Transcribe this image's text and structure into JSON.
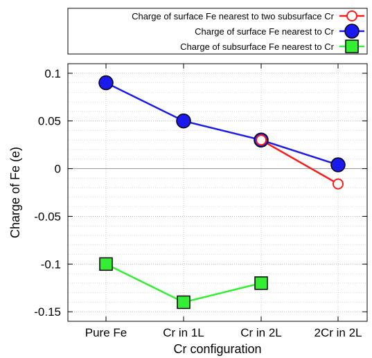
{
  "chart_data": {
    "type": "line",
    "xlabel": "Cr configuration",
    "ylabel": "Charge of Fe (e)",
    "categories": [
      "Pure Fe",
      "Cr in 1L",
      "Cr in 2L",
      "2Cr in 2L"
    ],
    "ylim": [
      -0.16,
      0.11
    ],
    "yticks": [
      0.1,
      0.05,
      0,
      -0.05,
      -0.1,
      -0.15
    ],
    "ytick_labels": [
      "0.1",
      "0.05",
      "0",
      "-0.05",
      "-0.1",
      "-0.15"
    ],
    "grid": true,
    "legend_position": "top-right, above plot",
    "zero_line": true,
    "series": [
      {
        "name": "Charge of surface Fe nearest to two subsurface Cr",
        "color": "#ff1a1a",
        "marker": "open-circle",
        "points": [
          [
            2,
            0.03
          ],
          [
            3,
            -0.016
          ]
        ]
      },
      {
        "name": "Charge of surface Fe nearest to Cr",
        "color": "#1a1aee",
        "marker": "filled-circle",
        "points": [
          [
            0,
            0.09
          ],
          [
            1,
            0.05
          ],
          [
            2,
            0.03
          ],
          [
            3,
            0.004
          ]
        ]
      },
      {
        "name": "Charge of subsurface Fe nearest to Cr",
        "color": "#33ee33",
        "marker": "filled-square",
        "points": [
          [
            0,
            -0.1
          ],
          [
            1,
            -0.14
          ],
          [
            2,
            -0.12
          ]
        ]
      }
    ]
  }
}
